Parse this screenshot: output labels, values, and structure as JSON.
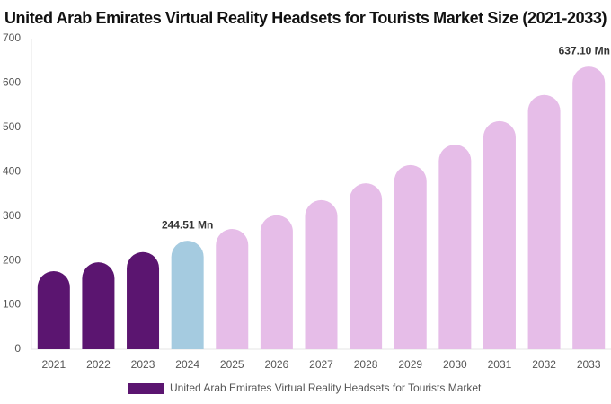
{
  "chart_data": {
    "type": "bar",
    "title": "United Arab Emirates Virtual Reality Headsets for Tourists Market Size (2021-2033)",
    "categories": [
      "2021",
      "2022",
      "2023",
      "2024",
      "2025",
      "2026",
      "2027",
      "2028",
      "2029",
      "2030",
      "2031",
      "2032",
      "2033"
    ],
    "series": [
      {
        "name": "United Arab Emirates Virtual Reality Headsets for Tourists Market",
        "color": "#5b1570",
        "values": [
          176,
          196,
          219,
          244.51,
          271,
          302,
          336,
          374,
          415,
          461,
          514,
          573,
          637.1
        ],
        "value_labels": [
          null,
          null,
          null,
          "244.51 Mn",
          null,
          null,
          null,
          null,
          null,
          null,
          null,
          null,
          "637.10 Mn"
        ],
        "colors": [
          "#5b1570",
          "#5b1570",
          "#5b1570",
          "#a5cbe0",
          "#e6bde8",
          "#e6bde8",
          "#e6bde8",
          "#e6bde8",
          "#e6bde8",
          "#e6bde8",
          "#e6bde8",
          "#e6bde8",
          "#e6bde8"
        ]
      }
    ],
    "ylim": [
      0,
      700
    ],
    "yticks": [
      0,
      100,
      200,
      300,
      400,
      500,
      600,
      700
    ],
    "grid": false,
    "legend": "bottom"
  }
}
